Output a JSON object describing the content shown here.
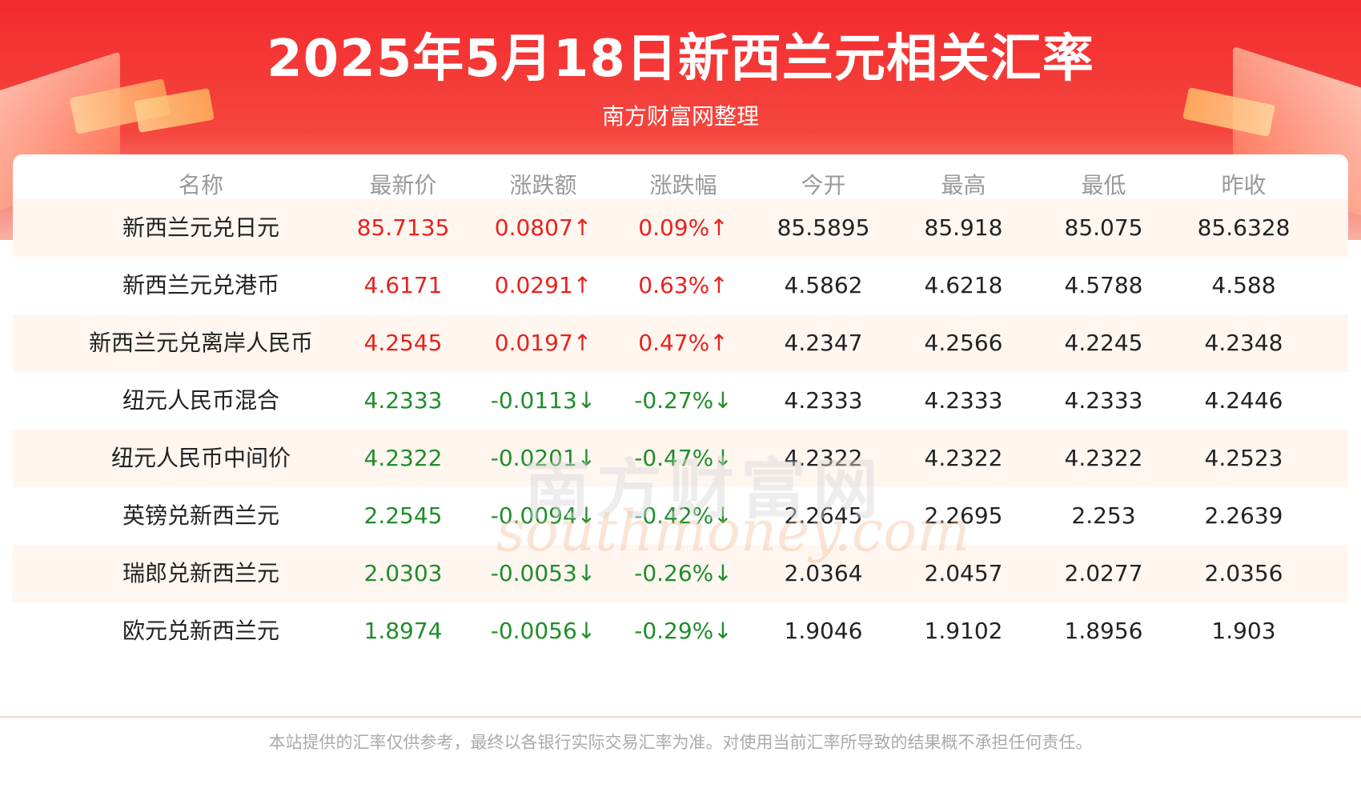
{
  "title": "2025年5月18日新西兰元相关汇率",
  "subtitle": "南方财富网整理",
  "columns": [
    "名称",
    "最新价",
    "涨跌额",
    "涨跌幅",
    "今开",
    "最高",
    "最低",
    "昨收"
  ],
  "rows": [
    {
      "name": "新西兰元兑日元",
      "latest": "85.7135",
      "change": "0.0807↑",
      "pct": "0.09%↑",
      "open": "85.5895",
      "high": "85.918",
      "low": "85.075",
      "prev": "85.6328",
      "trend": "up"
    },
    {
      "name": "新西兰元兑港币",
      "latest": "4.6171",
      "change": "0.0291↑",
      "pct": "0.63%↑",
      "open": "4.5862",
      "high": "4.6218",
      "low": "4.5788",
      "prev": "4.588",
      "trend": "up"
    },
    {
      "name": "新西兰元兑离岸人民币",
      "latest": "4.2545",
      "change": "0.0197↑",
      "pct": "0.47%↑",
      "open": "4.2347",
      "high": "4.2566",
      "low": "4.2245",
      "prev": "4.2348",
      "trend": "up"
    },
    {
      "name": "纽元人民币混合",
      "latest": "4.2333",
      "change": "-0.0113↓",
      "pct": "-0.27%↓",
      "open": "4.2333",
      "high": "4.2333",
      "low": "4.2333",
      "prev": "4.2446",
      "trend": "down"
    },
    {
      "name": "纽元人民币中间价",
      "latest": "4.2322",
      "change": "-0.0201↓",
      "pct": "-0.47%↓",
      "open": "4.2322",
      "high": "4.2322",
      "low": "4.2322",
      "prev": "4.2523",
      "trend": "down"
    },
    {
      "name": "英镑兑新西兰元",
      "latest": "2.2545",
      "change": "-0.0094↓",
      "pct": "-0.42%↓",
      "open": "2.2645",
      "high": "2.2695",
      "low": "2.253",
      "prev": "2.2639",
      "trend": "down"
    },
    {
      "name": "瑞郎兑新西兰元",
      "latest": "2.0303",
      "change": "-0.0053↓",
      "pct": "-0.26%↓",
      "open": "2.0364",
      "high": "2.0457",
      "low": "2.0277",
      "prev": "2.0356",
      "trend": "down"
    },
    {
      "name": "欧元兑新西兰元",
      "latest": "1.8974",
      "change": "-0.0056↓",
      "pct": "-0.29%↓",
      "open": "1.9046",
      "high": "1.9102",
      "low": "1.8956",
      "prev": "1.903",
      "trend": "down"
    }
  ],
  "watermark": {
    "cn": "南方财富网",
    "en": "southmoney.com"
  },
  "footer": "本站提供的汇率仅供参考，最终以各银行实际交易汇率为准。对使用当前汇率所导致的结果概不承担任何责任。",
  "colors": {
    "up": "#e8221d",
    "down": "#1f8d2a",
    "banner": "#f32a2e",
    "row_alt": "#fff6f0"
  }
}
